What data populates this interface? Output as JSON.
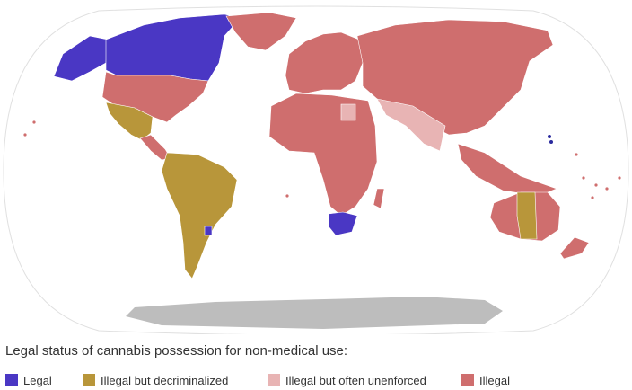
{
  "legend": {
    "title": "Legal status of cannabis possession for non-medical use:",
    "items": [
      {
        "key": "legal",
        "label": "Legal",
        "color": "#4a37c4"
      },
      {
        "key": "decriminalized",
        "label": "Illegal but decriminalized",
        "color": "#b8963a"
      },
      {
        "key": "unenforced",
        "label": "Illegal but often unenforced",
        "color": "#e8b4b4"
      },
      {
        "key": "illegal",
        "label": "Illegal",
        "color": "#cf6e6e"
      }
    ]
  },
  "map": {
    "antarctica_color": "#bdbdbd",
    "ocean_color": "#ffffff",
    "outline_color": "#e0e0e0",
    "regions": [
      {
        "name": "canada",
        "status": "legal"
      },
      {
        "name": "alaska",
        "status": "legal"
      },
      {
        "name": "usa",
        "status": "illegal"
      },
      {
        "name": "mexico",
        "status": "decriminalized"
      },
      {
        "name": "central-america",
        "status": "illegal"
      },
      {
        "name": "south-america",
        "status": "decriminalized"
      },
      {
        "name": "uruguay",
        "status": "legal"
      },
      {
        "name": "greenland",
        "status": "illegal"
      },
      {
        "name": "europe",
        "status": "illegal"
      },
      {
        "name": "russia-asia",
        "status": "illegal"
      },
      {
        "name": "africa",
        "status": "illegal"
      },
      {
        "name": "south-africa",
        "status": "legal"
      },
      {
        "name": "india-region",
        "status": "unenforced"
      },
      {
        "name": "egypt",
        "status": "unenforced"
      },
      {
        "name": "australia",
        "status": "illegal"
      },
      {
        "name": "australia-act",
        "status": "decriminalized"
      },
      {
        "name": "new-zealand",
        "status": "illegal"
      },
      {
        "name": "georgia",
        "status": "legal"
      }
    ]
  }
}
